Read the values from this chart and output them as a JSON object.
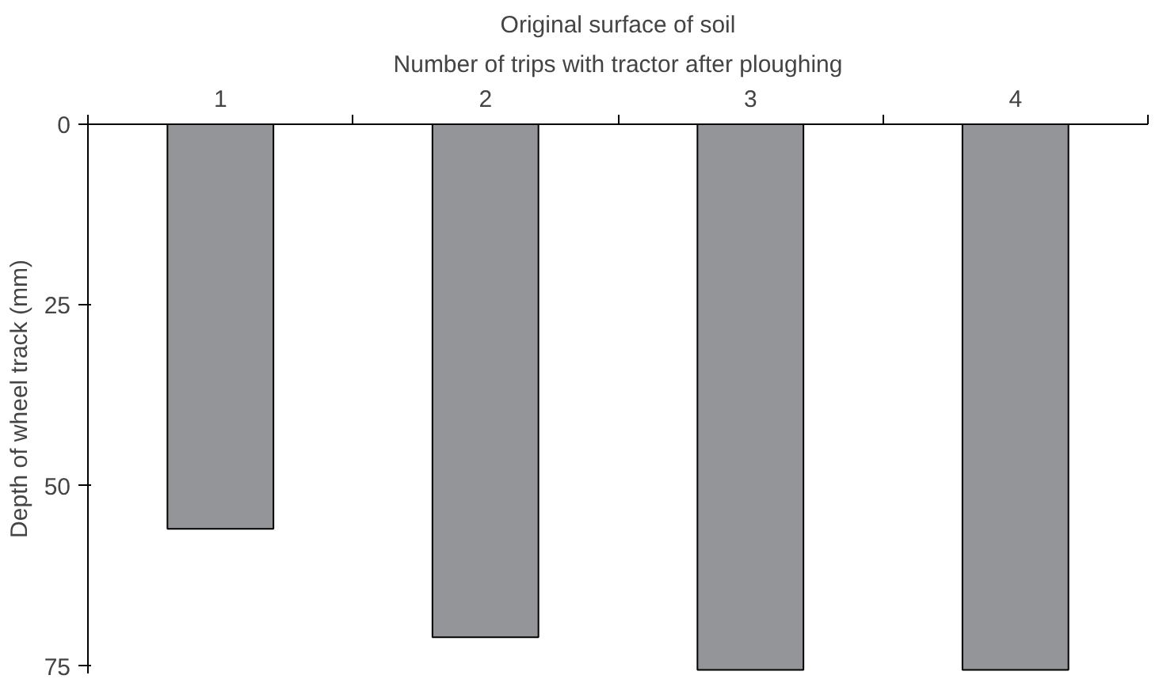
{
  "chart_data": {
    "type": "bar",
    "title": "Original surface of soil",
    "xlabel": "Number of trips with tractor after ploughing",
    "ylabel": "Depth of wheel track (mm)",
    "categories": [
      "1",
      "2",
      "3",
      "4"
    ],
    "values": [
      56,
      71,
      75.5,
      75.5
    ],
    "color": "#939598",
    "ylim": [
      76,
      0
    ],
    "yticks": [
      0,
      25,
      50,
      75
    ],
    "grid": false
  }
}
